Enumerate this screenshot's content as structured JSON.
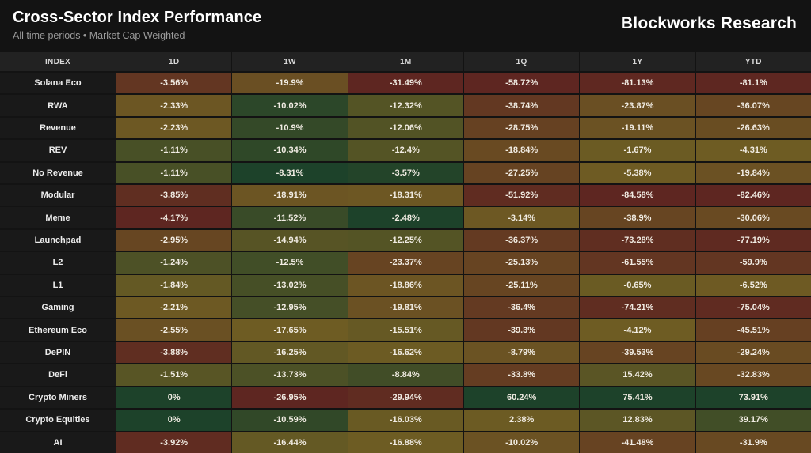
{
  "header": {
    "title": "Cross-Sector Index Performance",
    "subtitle": "All time periods • Market Cap Weighted",
    "brand": "Blockworks Research"
  },
  "chart_data": {
    "type": "heatmap",
    "title": "Cross-Sector Index Performance",
    "subtitle": "All time periods • Market Cap Weighted",
    "value_format": "percent",
    "legend": false,
    "columns": [
      "INDEX",
      "1D",
      "1W",
      "1M",
      "1Q",
      "1Y",
      "YTD"
    ],
    "rows": [
      {
        "index": "Solana Eco",
        "values": [
          "-3.56%",
          "-19.9%",
          "-31.49%",
          "-58.72%",
          "-81.13%",
          "-81.1%"
        ]
      },
      {
        "index": "RWA",
        "values": [
          "-2.33%",
          "-10.02%",
          "-12.32%",
          "-38.74%",
          "-23.87%",
          "-36.07%"
        ]
      },
      {
        "index": "Revenue",
        "values": [
          "-2.23%",
          "-10.9%",
          "-12.06%",
          "-28.75%",
          "-19.11%",
          "-26.63%"
        ]
      },
      {
        "index": "REV",
        "values": [
          "-1.11%",
          "-10.34%",
          "-12.4%",
          "-18.84%",
          "-1.67%",
          "-4.31%"
        ]
      },
      {
        "index": "No Revenue",
        "values": [
          "-1.11%",
          "-8.31%",
          "-3.57%",
          "-27.25%",
          "-5.38%",
          "-19.84%"
        ]
      },
      {
        "index": "Modular",
        "values": [
          "-3.85%",
          "-18.91%",
          "-18.31%",
          "-51.92%",
          "-84.58%",
          "-82.46%"
        ]
      },
      {
        "index": "Meme",
        "values": [
          "-4.17%",
          "-11.52%",
          "-2.48%",
          "-3.14%",
          "-38.9%",
          "-30.06%"
        ]
      },
      {
        "index": "Launchpad",
        "values": [
          "-2.95%",
          "-14.94%",
          "-12.25%",
          "-36.37%",
          "-73.28%",
          "-77.19%"
        ]
      },
      {
        "index": "L2",
        "values": [
          "-1.24%",
          "-12.5%",
          "-23.37%",
          "-25.13%",
          "-61.55%",
          "-59.9%"
        ]
      },
      {
        "index": "L1",
        "values": [
          "-1.84%",
          "-13.02%",
          "-18.86%",
          "-25.11%",
          "-0.65%",
          "-6.52%"
        ]
      },
      {
        "index": "Gaming",
        "values": [
          "-2.21%",
          "-12.95%",
          "-19.81%",
          "-36.4%",
          "-74.21%",
          "-75.04%"
        ]
      },
      {
        "index": "Ethereum Eco",
        "values": [
          "-2.55%",
          "-17.65%",
          "-15.51%",
          "-39.3%",
          "-4.12%",
          "-45.51%"
        ]
      },
      {
        "index": "DePIN",
        "values": [
          "-3.88%",
          "-16.25%",
          "-16.62%",
          "-8.79%",
          "-39.53%",
          "-29.24%"
        ]
      },
      {
        "index": "DeFi",
        "values": [
          "-1.51%",
          "-13.73%",
          "-8.84%",
          "-33.8%",
          "15.42%",
          "-32.83%"
        ]
      },
      {
        "index": "Crypto Miners",
        "values": [
          "0%",
          "-26.95%",
          "-29.94%",
          "60.24%",
          "75.41%",
          "73.91%"
        ]
      },
      {
        "index": "Crypto Equities",
        "values": [
          "0%",
          "-10.59%",
          "-16.03%",
          "2.38%",
          "12.83%",
          "39.17%"
        ]
      },
      {
        "index": "AI",
        "values": [
          "-3.92%",
          "-16.44%",
          "-16.88%",
          "-10.02%",
          "-41.48%",
          "-31.9%"
        ]
      }
    ],
    "colorscale": {
      "per_column": true,
      "min_color": "#5e2621",
      "mid_color": "#6e5c23",
      "max_color": "#1d422a"
    }
  }
}
